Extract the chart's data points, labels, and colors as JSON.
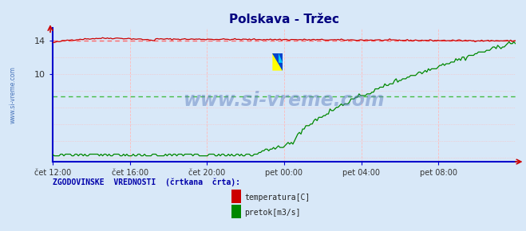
{
  "title": "Polskava - Tržec",
  "title_color": "#000080",
  "title_fontsize": 11,
  "bg_color": "#d8e8f8",
  "plot_bg_color": "#d8e8f8",
  "x_labels": [
    "čet 12:00",
    "čet 16:00",
    "čet 20:00",
    "pet 00:00",
    "pet 04:00",
    "pet 08:00"
  ],
  "x_ticks_norm": [
    0.0,
    0.1667,
    0.3333,
    0.5,
    0.6667,
    0.8333
  ],
  "yticks": [
    10,
    14
  ],
  "ymin": -0.5,
  "ymax": 15.5,
  "temp_color": "#cc0000",
  "flow_color": "#008800",
  "hist_temp_color": "#ff6666",
  "hist_flow_color": "#44bb44",
  "axis_color": "#0000cc",
  "grid_color": "#ffbbbb",
  "watermark": "www.si-vreme.com",
  "watermark_color": "#5577bb",
  "watermark_alpha": 0.45,
  "ylabel_text": "www.si-vreme.com",
  "legend_title": "ZGODOVINSKE  VREDNOSTI  (črtkana  črta):",
  "legend_temp": "temperatura[C]",
  "legend_flow": "pretok[m3/s]",
  "n_points": 288,
  "temp_hist_value": 13.95,
  "flow_hist_value": 7.3,
  "logo_yellow": "#ffff00",
  "logo_blue": "#0044cc",
  "logo_cyan": "#00ccff"
}
